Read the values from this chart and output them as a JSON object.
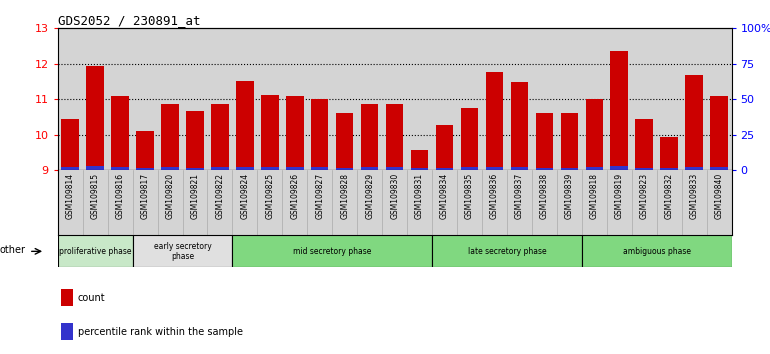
{
  "title": "GDS2052 / 230891_at",
  "samples": [
    "GSM109814",
    "GSM109815",
    "GSM109816",
    "GSM109817",
    "GSM109820",
    "GSM109821",
    "GSM109822",
    "GSM109824",
    "GSM109825",
    "GSM109826",
    "GSM109827",
    "GSM109828",
    "GSM109829",
    "GSM109830",
    "GSM109831",
    "GSM109834",
    "GSM109835",
    "GSM109836",
    "GSM109837",
    "GSM109838",
    "GSM109839",
    "GSM109818",
    "GSM109819",
    "GSM109823",
    "GSM109832",
    "GSM109833",
    "GSM109840"
  ],
  "counts": [
    10.43,
    11.93,
    11.1,
    10.1,
    10.87,
    10.67,
    10.87,
    11.52,
    11.12,
    11.1,
    11.0,
    10.6,
    10.87,
    10.85,
    9.55,
    10.27,
    10.75,
    11.77,
    11.48,
    10.62,
    10.6,
    11.0,
    12.35,
    10.43,
    9.93,
    11.68,
    11.1
  ],
  "percentiles": [
    5,
    8,
    5,
    4,
    5,
    4,
    5,
    6,
    5,
    5,
    5,
    4,
    5,
    5,
    3,
    4,
    5,
    6,
    5,
    4,
    4,
    5,
    8,
    4,
    3,
    6,
    5
  ],
  "phases": [
    {
      "label": "proliferative phase",
      "start": 0,
      "end": 3,
      "color": "#c8e8c8"
    },
    {
      "label": "early secretory\nphase",
      "start": 3,
      "end": 7,
      "color": "#e0e0e0"
    },
    {
      "label": "mid secretory phase",
      "start": 7,
      "end": 15,
      "color": "#80d880"
    },
    {
      "label": "late secretory phase",
      "start": 15,
      "end": 21,
      "color": "#80d880"
    },
    {
      "label": "ambiguous phase",
      "start": 21,
      "end": 27,
      "color": "#80d880"
    }
  ],
  "ylim": [
    9,
    13
  ],
  "yticks": [
    9,
    10,
    11,
    12,
    13
  ],
  "right_yticks_vals": [
    0,
    25,
    50,
    75,
    100
  ],
  "right_ylabels": [
    "0",
    "25",
    "50",
    "75",
    "100%"
  ],
  "bar_color": "#cc0000",
  "percentile_color": "#3333cc",
  "bg_color": "#d4d4d4",
  "bar_width": 0.7
}
